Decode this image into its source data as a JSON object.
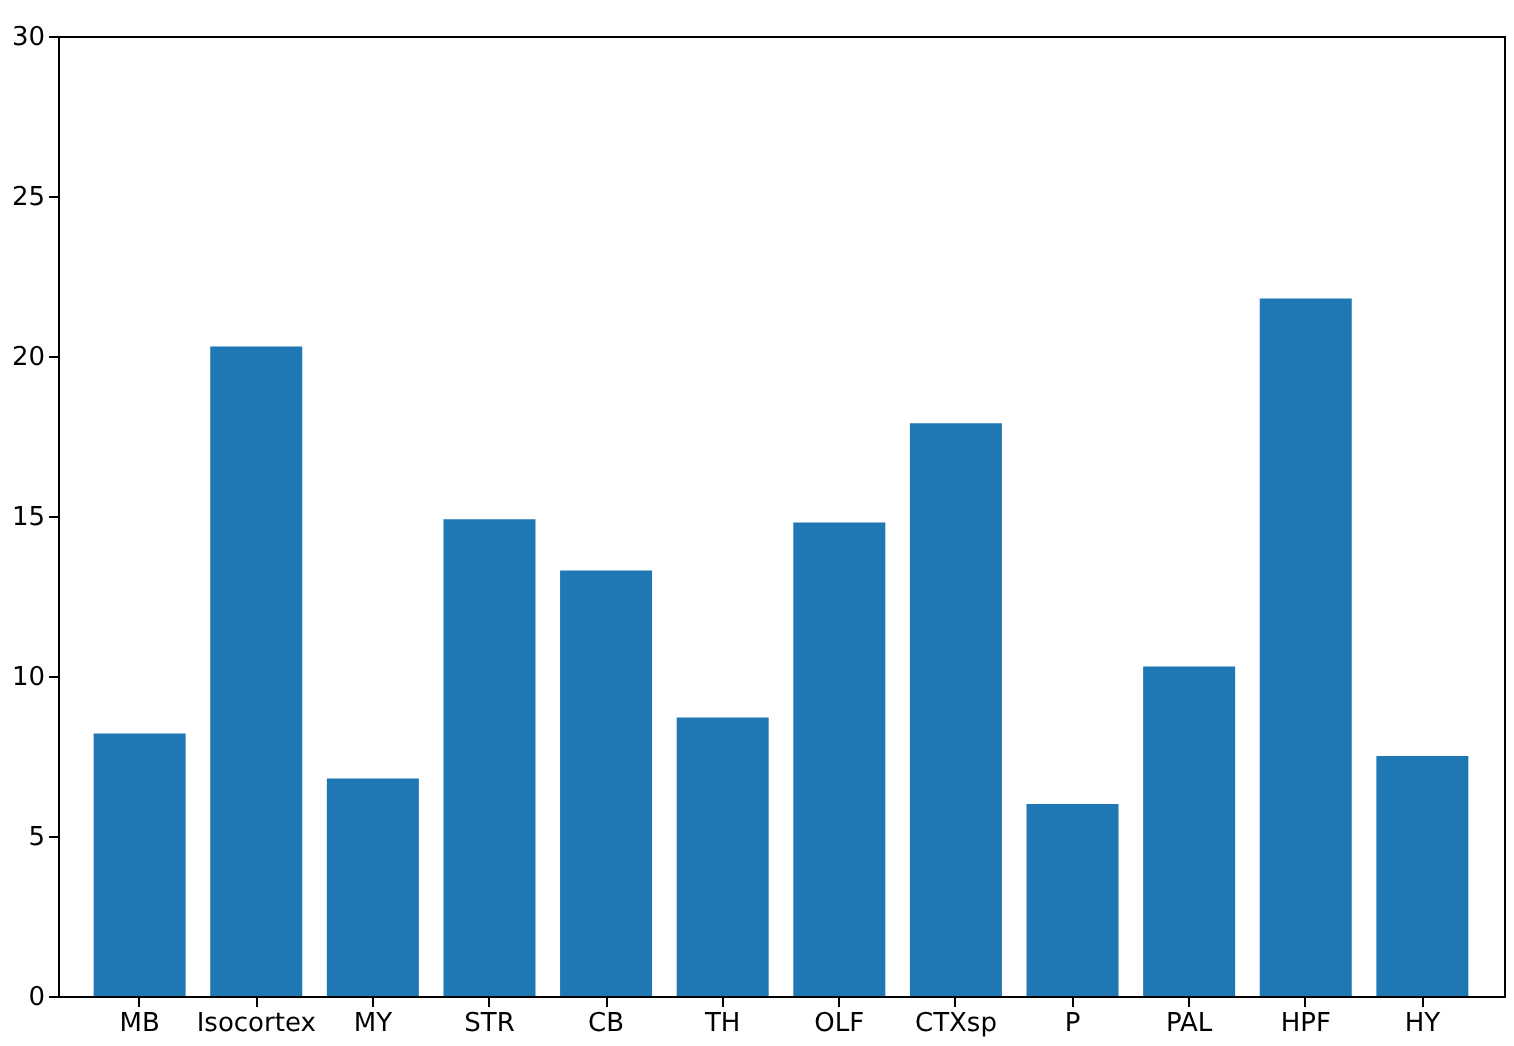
{
  "chart_data": {
    "type": "bar",
    "categories": [
      "MB",
      "Isocortex",
      "MY",
      "STR",
      "CB",
      "TH",
      "OLF",
      "CTXsp",
      "P",
      "PAL",
      "HPF",
      "HY"
    ],
    "values": [
      8.2,
      20.3,
      6.8,
      14.9,
      13.3,
      8.7,
      14.8,
      17.9,
      6.0,
      10.3,
      21.8,
      7.5
    ],
    "color": "#1f77b4",
    "ylim": [
      0,
      30
    ],
    "yticks": [
      0,
      5,
      10,
      15,
      20,
      25,
      30
    ],
    "grid": false
  }
}
